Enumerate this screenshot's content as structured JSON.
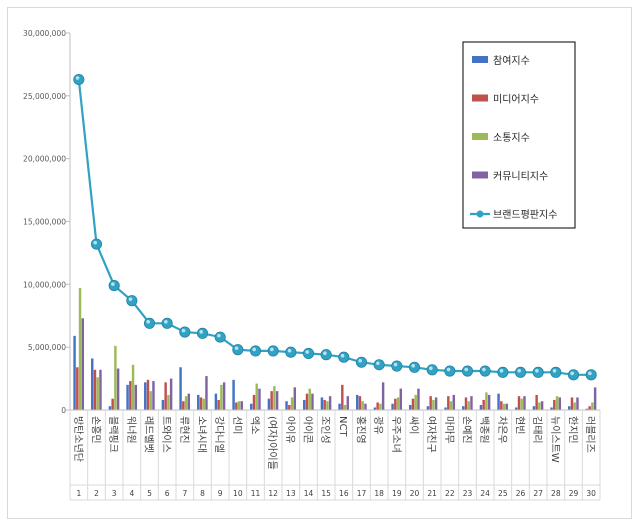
{
  "chart_data": {
    "type": "bar",
    "title": "",
    "xlabel": "",
    "ylabel": "",
    "ylim": [
      0,
      30000000
    ],
    "y_ticks": [
      "0",
      "5,000,000",
      "10,000,000",
      "15,000,000",
      "20,000,000",
      "25,000,000",
      "30,000,000"
    ],
    "y_tick_values": [
      0,
      5000000,
      10000000,
      15000000,
      20000000,
      25000000,
      30000000
    ],
    "grid": false,
    "legend_position": "top-right",
    "categories": [
      "방탄소년단",
      "손흥민",
      "블랙핑크",
      "워너원",
      "레드벨벳",
      "트와이스",
      "류현진",
      "소녀시대",
      "강다니엘",
      "선미",
      "엑소",
      "(여자)아이들",
      "아이유",
      "아이콘",
      "조인성",
      "NCT",
      "홍진영",
      "광유",
      "우주소녀",
      "싸이",
      "여자친구",
      "마마무",
      "손예진",
      "백종원",
      "차은우",
      "현빈",
      "김태리",
      "뉴이스트W",
      "한지민",
      "러블리즈"
    ],
    "ranks": [
      "1",
      "2",
      "3",
      "4",
      "5",
      "6",
      "7",
      "8",
      "9",
      "10",
      "11",
      "12",
      "13",
      "14",
      "15",
      "16",
      "17",
      "18",
      "19",
      "20",
      "21",
      "22",
      "23",
      "24",
      "25",
      "26",
      "27",
      "28",
      "29",
      "30"
    ],
    "series": [
      {
        "name": "참여지수",
        "kind": "bar",
        "color": "#4472c4",
        "values": [
          5900000,
          4100000,
          300000,
          2000000,
          2200000,
          800000,
          3400000,
          1200000,
          1300000,
          2400000,
          500000,
          900000,
          700000,
          800000,
          1000000,
          500000,
          1200000,
          200000,
          500000,
          400000,
          300000,
          200000,
          300000,
          400000,
          1300000,
          200000,
          300000,
          200000,
          300000,
          100000
        ]
      },
      {
        "name": "미디어지수",
        "kind": "bar",
        "color": "#c0504d",
        "values": [
          3400000,
          3200000,
          900000,
          2300000,
          2400000,
          2200000,
          700000,
          1000000,
          800000,
          600000,
          1200000,
          1500000,
          400000,
          1300000,
          800000,
          2000000,
          1100000,
          600000,
          900000,
          900000,
          1100000,
          1100000,
          1000000,
          800000,
          700000,
          1100000,
          1200000,
          800000,
          1000000,
          300000
        ]
      },
      {
        "name": "소통지수",
        "kind": "bar",
        "color": "#9bbb59",
        "values": [
          9700000,
          2600000,
          5100000,
          3600000,
          1500000,
          1200000,
          1100000,
          900000,
          2000000,
          700000,
          2100000,
          1900000,
          1000000,
          1700000,
          700000,
          400000,
          700000,
          500000,
          1000000,
          1200000,
          800000,
          700000,
          700000,
          1400000,
          500000,
          900000,
          600000,
          1100000,
          600000,
          600000
        ]
      },
      {
        "name": "커뮤니티지수",
        "kind": "bar",
        "color": "#8064a2",
        "values": [
          7300000,
          3200000,
          3300000,
          2000000,
          2300000,
          2500000,
          1300000,
          2700000,
          2200000,
          700000,
          1700000,
          1500000,
          1800000,
          1300000,
          1100000,
          1100000,
          500000,
          2200000,
          1700000,
          1700000,
          1000000,
          1200000,
          1100000,
          1200000,
          500000,
          1100000,
          700000,
          1000000,
          1000000,
          1800000
        ]
      },
      {
        "name": "브랜드평판지수",
        "kind": "line",
        "color": "#31a2c4",
        "values": [
          26300000,
          13200000,
          9900000,
          8700000,
          6900000,
          6900000,
          6200000,
          6100000,
          5800000,
          4800000,
          4700000,
          4700000,
          4600000,
          4500000,
          4400000,
          4200000,
          3800000,
          3600000,
          3500000,
          3400000,
          3200000,
          3100000,
          3100000,
          3100000,
          3000000,
          3000000,
          3000000,
          3000000,
          2800000,
          2800000
        ]
      }
    ]
  }
}
